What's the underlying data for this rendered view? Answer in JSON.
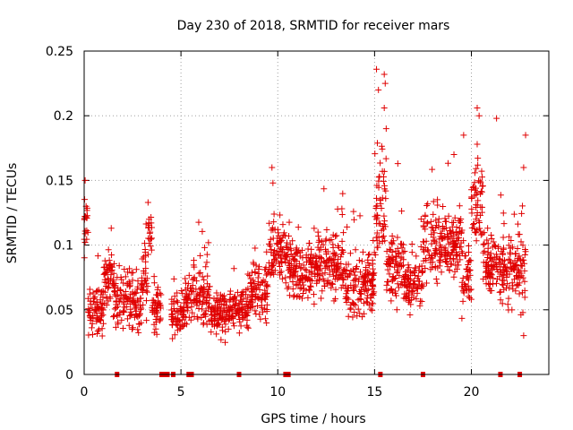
{
  "chart_data": {
    "type": "scatter",
    "title": "Day 230 of 2018, SRMTID for receiver mars",
    "xlabel": "GPS time / hours",
    "ylabel": "SRMTID / TECUs",
    "xlim": [
      0,
      24
    ],
    "ylim": [
      0,
      0.25
    ],
    "xticks": [
      0,
      5,
      10,
      15,
      20
    ],
    "yticks": [
      0,
      0.05,
      0.1,
      0.15,
      0.2,
      0.25
    ],
    "xtick_labels": [
      "0",
      "5",
      "10",
      "15",
      "20"
    ],
    "ytick_labels": [
      "0",
      "0.05",
      "0.1",
      "0.15",
      "0.2",
      "0.25"
    ],
    "grid": true,
    "marker": "+",
    "color": "#e00000",
    "zero_markers_x": [
      1.7,
      4.0,
      4.15,
      4.3,
      4.6,
      5.4,
      5.55,
      8.0,
      10.4,
      10.55,
      15.3,
      17.5,
      21.5,
      22.5
    ],
    "segments": [
      {
        "x0": 0.0,
        "x1": 0.2,
        "base": 0.115,
        "spread": 0.03
      },
      {
        "x0": 0.2,
        "x1": 1.0,
        "base": 0.05,
        "spread": 0.025
      },
      {
        "x0": 1.0,
        "x1": 1.5,
        "base": 0.075,
        "spread": 0.03
      },
      {
        "x0": 1.5,
        "x1": 3.0,
        "base": 0.055,
        "spread": 0.03
      },
      {
        "x0": 3.0,
        "x1": 3.3,
        "base": 0.075,
        "spread": 0.035
      },
      {
        "x0": 3.3,
        "x1": 3.5,
        "base": 0.11,
        "spread": 0.025
      },
      {
        "x0": 3.5,
        "x1": 4.0,
        "base": 0.05,
        "spread": 0.025
      },
      {
        "x0": 4.5,
        "x1": 5.2,
        "base": 0.045,
        "spread": 0.02
      },
      {
        "x0": 5.2,
        "x1": 6.5,
        "base": 0.06,
        "spread": 0.03
      },
      {
        "x0": 6.5,
        "x1": 7.5,
        "base": 0.045,
        "spread": 0.025
      },
      {
        "x0": 7.5,
        "x1": 8.5,
        "base": 0.05,
        "spread": 0.025
      },
      {
        "x0": 8.5,
        "x1": 9.5,
        "base": 0.065,
        "spread": 0.03
      },
      {
        "x0": 9.5,
        "x1": 10.5,
        "base": 0.095,
        "spread": 0.035
      },
      {
        "x0": 10.5,
        "x1": 12.0,
        "base": 0.08,
        "spread": 0.03
      },
      {
        "x0": 12.0,
        "x1": 13.5,
        "base": 0.085,
        "spread": 0.035
      },
      {
        "x0": 13.5,
        "x1": 15.0,
        "base": 0.07,
        "spread": 0.035
      },
      {
        "x0": 15.0,
        "x1": 15.6,
        "base": 0.13,
        "spread": 0.065
      },
      {
        "x0": 15.6,
        "x1": 16.5,
        "base": 0.085,
        "spread": 0.04
      },
      {
        "x0": 16.5,
        "x1": 17.5,
        "base": 0.07,
        "spread": 0.03
      },
      {
        "x0": 17.5,
        "x1": 19.5,
        "base": 0.1,
        "spread": 0.04
      },
      {
        "x0": 19.5,
        "x1": 20.0,
        "base": 0.075,
        "spread": 0.035
      },
      {
        "x0": 20.0,
        "x1": 20.6,
        "base": 0.135,
        "spread": 0.045
      },
      {
        "x0": 20.6,
        "x1": 21.5,
        "base": 0.085,
        "spread": 0.035
      },
      {
        "x0": 21.5,
        "x1": 22.4,
        "base": 0.08,
        "spread": 0.035
      },
      {
        "x0": 22.4,
        "x1": 22.8,
        "base": 0.085,
        "spread": 0.055
      }
    ],
    "notable_points": [
      {
        "x": 0.05,
        "y": 0.15
      },
      {
        "x": 0.1,
        "y": 0.13
      },
      {
        "x": 3.3,
        "y": 0.133
      },
      {
        "x": 3.35,
        "y": 0.12
      },
      {
        "x": 9.7,
        "y": 0.16
      },
      {
        "x": 9.75,
        "y": 0.148
      },
      {
        "x": 15.1,
        "y": 0.236
      },
      {
        "x": 15.2,
        "y": 0.22
      },
      {
        "x": 15.5,
        "y": 0.232
      },
      {
        "x": 15.55,
        "y": 0.225
      },
      {
        "x": 15.5,
        "y": 0.206
      },
      {
        "x": 15.6,
        "y": 0.19
      },
      {
        "x": 16.2,
        "y": 0.163
      },
      {
        "x": 19.1,
        "y": 0.17
      },
      {
        "x": 19.6,
        "y": 0.185
      },
      {
        "x": 20.3,
        "y": 0.206
      },
      {
        "x": 20.4,
        "y": 0.2
      },
      {
        "x": 20.3,
        "y": 0.178
      },
      {
        "x": 21.3,
        "y": 0.198
      },
      {
        "x": 22.8,
        "y": 0.185
      },
      {
        "x": 22.7,
        "y": 0.16
      },
      {
        "x": 22.7,
        "y": 0.03
      }
    ]
  }
}
